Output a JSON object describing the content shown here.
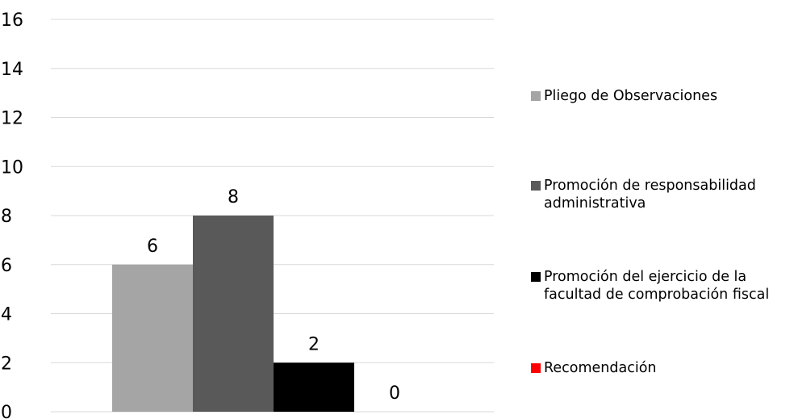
{
  "chart_data": {
    "type": "bar",
    "title": "",
    "xlabel": "",
    "ylabel": "",
    "ylim": [
      0,
      16
    ],
    "yticks": [
      0,
      2,
      4,
      6,
      8,
      10,
      12,
      14,
      16
    ],
    "grid": true,
    "legend_position": "right",
    "categories": [
      ""
    ],
    "series": [
      {
        "name": "Pliego de Observaciones",
        "values": [
          6
        ],
        "color": "#a5a5a5"
      },
      {
        "name": "Promoción de responsabilidad administrativa",
        "values": [
          8
        ],
        "color": "#595959"
      },
      {
        "name": "Promoción del ejercicio de la facultad de comprobación fiscal",
        "values": [
          2
        ],
        "color": "#000000"
      },
      {
        "name": "Recomendación",
        "values": [
          0
        ],
        "color": "#ff0000"
      }
    ]
  }
}
